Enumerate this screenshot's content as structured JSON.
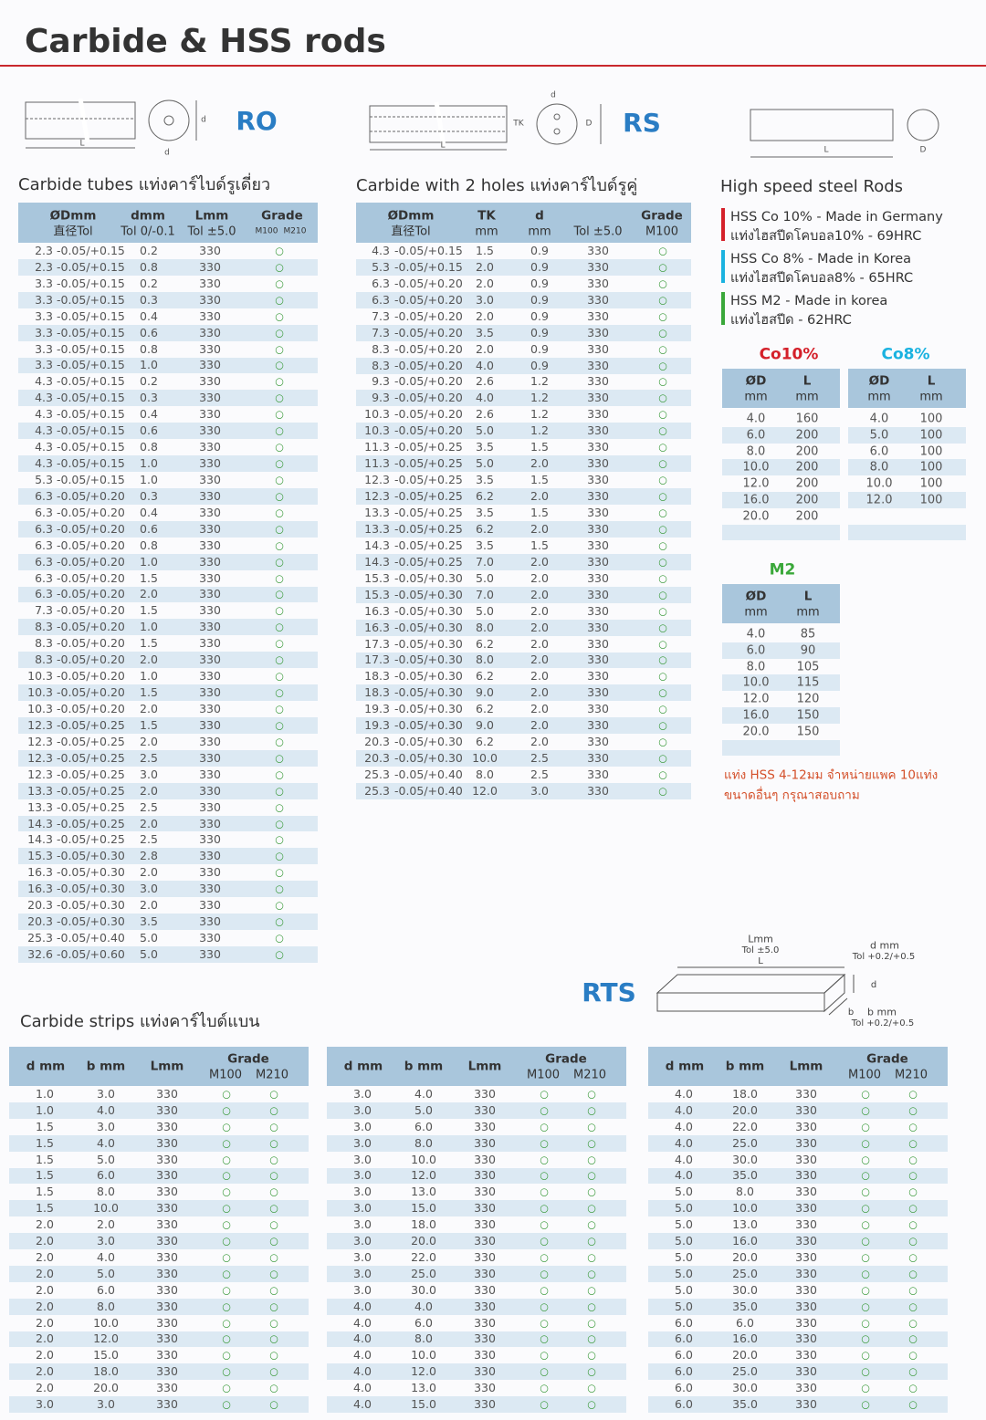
{
  "header": {
    "title": "Carbide & HSS rods"
  },
  "tubes": {
    "code": "RO",
    "title": "Carbide tubes แท่งคาร์ไบด์รูเดี่ยว",
    "diagram": [
      "L",
      "d",
      "d"
    ],
    "headers": [
      [
        "ØDmm",
        "直径Tol"
      ],
      [
        "dmm",
        "Tol 0/-0.1"
      ],
      [
        "Lmm",
        "Tol ±5.0"
      ],
      [
        "Grade",
        "M100",
        "M210"
      ]
    ],
    "rows": [
      [
        "2.3",
        "-0.05/+0.15",
        "0.2",
        "330",
        "○"
      ],
      [
        "2.3",
        "-0.05/+0.15",
        "0.8",
        "330",
        "○"
      ],
      [
        "3.3",
        "-0.05/+0.15",
        "0.2",
        "330",
        "○"
      ],
      [
        "3.3",
        "-0.05/+0.15",
        "0.3",
        "330",
        "○"
      ],
      [
        "3.3",
        "-0.05/+0.15",
        "0.4",
        "330",
        "○"
      ],
      [
        "3.3",
        "-0.05/+0.15",
        "0.6",
        "330",
        "○"
      ],
      [
        "3.3",
        "-0.05/+0.15",
        "0.8",
        "330",
        "○"
      ],
      [
        "3.3",
        "-0.05/+0.15",
        "1.0",
        "330",
        "○"
      ],
      [
        "4.3",
        "-0.05/+0.15",
        "0.2",
        "330",
        "○"
      ],
      [
        "4.3",
        "-0.05/+0.15",
        "0.3",
        "330",
        "○"
      ],
      [
        "4.3",
        "-0.05/+0.15",
        "0.4",
        "330",
        "○"
      ],
      [
        "4.3",
        "-0.05/+0.15",
        "0.6",
        "330",
        "○"
      ],
      [
        "4.3",
        "-0.05/+0.15",
        "0.8",
        "330",
        "○"
      ],
      [
        "4.3",
        "-0.05/+0.15",
        "1.0",
        "330",
        "○"
      ],
      [
        "5.3",
        "-0.05/+0.15",
        "1.0",
        "330",
        "○"
      ],
      [
        "6.3",
        "-0.05/+0.20",
        "0.3",
        "330",
        "○"
      ],
      [
        "6.3",
        "-0.05/+0.20",
        "0.4",
        "330",
        "○"
      ],
      [
        "6.3",
        "-0.05/+0.20",
        "0.6",
        "330",
        "○"
      ],
      [
        "6.3",
        "-0.05/+0.20",
        "0.8",
        "330",
        "○"
      ],
      [
        "6.3",
        "-0.05/+0.20",
        "1.0",
        "330",
        "○"
      ],
      [
        "6.3",
        "-0.05/+0.20",
        "1.5",
        "330",
        "○"
      ],
      [
        "6.3",
        "-0.05/+0.20",
        "2.0",
        "330",
        "○"
      ],
      [
        "7.3",
        "-0.05/+0.20",
        "1.5",
        "330",
        "○"
      ],
      [
        "8.3",
        "-0.05/+0.20",
        "1.0",
        "330",
        "○"
      ],
      [
        "8.3",
        "-0.05/+0.20",
        "1.5",
        "330",
        "○"
      ],
      [
        "8.3",
        "-0.05/+0.20",
        "2.0",
        "330",
        "○"
      ],
      [
        "10.3",
        "-0.05/+0.20",
        "1.0",
        "330",
        "○"
      ],
      [
        "10.3",
        "-0.05/+0.20",
        "1.5",
        "330",
        "○"
      ],
      [
        "10.3",
        "-0.05/+0.20",
        "2.0",
        "330",
        "○"
      ],
      [
        "12.3",
        "-0.05/+0.25",
        "1.5",
        "330",
        "○"
      ],
      [
        "12.3",
        "-0.05/+0.25",
        "2.0",
        "330",
        "○"
      ],
      [
        "12.3",
        "-0.05/+0.25",
        "2.5",
        "330",
        "○"
      ],
      [
        "12.3",
        "-0.05/+0.25",
        "3.0",
        "330",
        "○"
      ],
      [
        "13.3",
        "-0.05/+0.25",
        "2.0",
        "330",
        "○"
      ],
      [
        "13.3",
        "-0.05/+0.25",
        "2.5",
        "330",
        "○"
      ],
      [
        "14.3",
        "-0.05/+0.25",
        "2.0",
        "330",
        "○"
      ],
      [
        "14.3",
        "-0.05/+0.25",
        "2.5",
        "330",
        "○"
      ],
      [
        "15.3",
        "-0.05/+0.30",
        "2.8",
        "330",
        "○"
      ],
      [
        "16.3",
        "-0.05/+0.30",
        "2.0",
        "330",
        "○"
      ],
      [
        "16.3",
        "-0.05/+0.30",
        "3.0",
        "330",
        "○"
      ],
      [
        "20.3",
        "-0.05/+0.30",
        "2.0",
        "330",
        "○"
      ],
      [
        "20.3",
        "-0.05/+0.30",
        "3.5",
        "330",
        "○"
      ],
      [
        "25.3",
        "-0.05/+0.40",
        "5.0",
        "330",
        "○"
      ],
      [
        "32.6",
        "-0.05/+0.60",
        "5.0",
        "330",
        "○"
      ]
    ]
  },
  "holes": {
    "code": "RS",
    "title": "Carbide with 2 holes แท่งคาร์ไบด์รูคู่",
    "diagram": [
      "L",
      "TK",
      "D",
      "d"
    ],
    "headers": [
      [
        "ØDmm",
        "直径Tol"
      ],
      [
        "TK",
        "mm"
      ],
      [
        "d",
        "mm"
      ],
      [
        "",
        "Tol ±5.0"
      ],
      [
        "Grade",
        "M100"
      ]
    ],
    "rows": [
      [
        "4.3",
        "-0.05/+0.15",
        "1.5",
        "0.9",
        "330",
        "○"
      ],
      [
        "5.3",
        "-0.05/+0.15",
        "2.0",
        "0.9",
        "330",
        "○"
      ],
      [
        "6.3",
        "-0.05/+0.20",
        "2.0",
        "0.9",
        "330",
        "○"
      ],
      [
        "6.3",
        "-0.05/+0.20",
        "3.0",
        "0.9",
        "330",
        "○"
      ],
      [
        "7.3",
        "-0.05/+0.20",
        "2.0",
        "0.9",
        "330",
        "○"
      ],
      [
        "7.3",
        "-0.05/+0.20",
        "3.5",
        "0.9",
        "330",
        "○"
      ],
      [
        "8.3",
        "-0.05/+0.20",
        "2.0",
        "0.9",
        "330",
        "○"
      ],
      [
        "8.3",
        "-0.05/+0.20",
        "4.0",
        "0.9",
        "330",
        "○"
      ],
      [
        "9.3",
        "-0.05/+0.20",
        "2.6",
        "1.2",
        "330",
        "○"
      ],
      [
        "9.3",
        "-0.05/+0.20",
        "4.0",
        "1.2",
        "330",
        "○"
      ],
      [
        "10.3",
        "-0.05/+0.20",
        "2.6",
        "1.2",
        "330",
        "○"
      ],
      [
        "10.3",
        "-0.05/+0.20",
        "5.0",
        "1.2",
        "330",
        "○"
      ],
      [
        "11.3",
        "-0.05/+0.25",
        "3.5",
        "1.5",
        "330",
        "○"
      ],
      [
        "11.3",
        "-0.05/+0.25",
        "5.0",
        "2.0",
        "330",
        "○"
      ],
      [
        "12.3",
        "-0.05/+0.25",
        "3.5",
        "1.5",
        "330",
        "○"
      ],
      [
        "12.3",
        "-0.05/+0.25",
        "6.2",
        "2.0",
        "330",
        "○"
      ],
      [
        "13.3",
        "-0.05/+0.25",
        "3.5",
        "1.5",
        "330",
        "○"
      ],
      [
        "13.3",
        "-0.05/+0.25",
        "6.2",
        "2.0",
        "330",
        "○"
      ],
      [
        "14.3",
        "-0.05/+0.25",
        "3.5",
        "1.5",
        "330",
        "○"
      ],
      [
        "14.3",
        "-0.05/+0.25",
        "7.0",
        "2.0",
        "330",
        "○"
      ],
      [
        "15.3",
        "-0.05/+0.30",
        "5.0",
        "2.0",
        "330",
        "○"
      ],
      [
        "15.3",
        "-0.05/+0.30",
        "7.0",
        "2.0",
        "330",
        "○"
      ],
      [
        "16.3",
        "-0.05/+0.30",
        "5.0",
        "2.0",
        "330",
        "○"
      ],
      [
        "16.3",
        "-0.05/+0.30",
        "8.0",
        "2.0",
        "330",
        "○"
      ],
      [
        "17.3",
        "-0.05/+0.30",
        "6.2",
        "2.0",
        "330",
        "○"
      ],
      [
        "17.3",
        "-0.05/+0.30",
        "8.0",
        "2.0",
        "330",
        "○"
      ],
      [
        "18.3",
        "-0.05/+0.30",
        "6.2",
        "2.0",
        "330",
        "○"
      ],
      [
        "18.3",
        "-0.05/+0.30",
        "9.0",
        "2.0",
        "330",
        "○"
      ],
      [
        "19.3",
        "-0.05/+0.30",
        "6.2",
        "2.0",
        "330",
        "○"
      ],
      [
        "19.3",
        "-0.05/+0.30",
        "9.0",
        "2.0",
        "330",
        "○"
      ],
      [
        "20.3",
        "-0.05/+0.30",
        "6.2",
        "2.0",
        "330",
        "○"
      ],
      [
        "20.3",
        "-0.05/+0.30",
        "10.0",
        "2.5",
        "330",
        "○"
      ],
      [
        "25.3",
        "-0.05/+0.40",
        "8.0",
        "2.5",
        "330",
        "○"
      ],
      [
        "25.3",
        "-0.05/+0.40",
        "12.0",
        "3.0",
        "330",
        "○"
      ]
    ]
  },
  "hss": {
    "title": "High speed steel Rods",
    "diagram": [
      "L",
      "D"
    ],
    "legend": [
      {
        "name": "HSS Co 10% - Made in Germany",
        "sub": "แท่งไฮสปีดโคบอล10% - 69HRC",
        "color": "#d4202a"
      },
      {
        "name": "HSS Co 8% - Made in Korea",
        "sub": "แท่งไฮสปีดโคบอล8% - 65HRC",
        "color": "#1ab2e0"
      },
      {
        "name": "HSS M2 - Made in korea",
        "sub": "แท่งไฮสปีด - 62HRC",
        "color": "#3aa83a"
      }
    ],
    "tables": [
      {
        "label": "Co10%",
        "color": "#d4202a",
        "headers": [
          [
            "ØD",
            "mm"
          ],
          [
            "L",
            "mm"
          ]
        ],
        "rows": [
          [
            "4.0",
            "160"
          ],
          [
            "6.0",
            "200"
          ],
          [
            "8.0",
            "200"
          ],
          [
            "10.0",
            "200"
          ],
          [
            "12.0",
            "200"
          ],
          [
            "16.0",
            "200"
          ],
          [
            "20.0",
            "200"
          ]
        ]
      },
      {
        "label": "Co8%",
        "color": "#1ab2e0",
        "headers": [
          [
            "ØD",
            "mm"
          ],
          [
            "L",
            "mm"
          ]
        ],
        "rows": [
          [
            "4.0",
            "100"
          ],
          [
            "5.0",
            "100"
          ],
          [
            "6.0",
            "100"
          ],
          [
            "8.0",
            "100"
          ],
          [
            "10.0",
            "100"
          ],
          [
            "12.0",
            "100"
          ]
        ]
      },
      {
        "label": "M2",
        "color": "#3aa83a",
        "headers": [
          [
            "ØD",
            "mm"
          ],
          [
            "L",
            "mm"
          ]
        ],
        "rows": [
          [
            "4.0",
            "85"
          ],
          [
            "6.0",
            "90"
          ],
          [
            "8.0",
            "105"
          ],
          [
            "10.0",
            "115"
          ],
          [
            "12.0",
            "120"
          ],
          [
            "16.0",
            "150"
          ],
          [
            "20.0",
            "150"
          ]
        ]
      }
    ],
    "note": [
      "แท่ง HSS 4-12มม จำหน่ายแพค 10แท่ง",
      "ขนาดอื่นๆ กรุณาสอบถาม"
    ]
  },
  "strips": {
    "code": "RTS",
    "title": "Carbide strips แท่งคาร์ไบด์แบน",
    "diagram": [
      "Lmm",
      "Tol ±5.0",
      "L",
      "d mm",
      "Tol +0.2/+0.5",
      "d",
      "b",
      "b mm",
      "Tol +0.2/+0.5"
    ],
    "tables": [
      {
        "headers": [
          [
            "d mm"
          ],
          [
            "b mm"
          ],
          [
            "Lmm"
          ],
          [
            "Grade",
            "M100",
            "M210"
          ]
        ],
        "rows": [
          [
            "1.0",
            "3.0",
            "330",
            "○",
            "○"
          ],
          [
            "1.0",
            "4.0",
            "330",
            "○",
            "○"
          ],
          [
            "1.5",
            "3.0",
            "330",
            "○",
            "○"
          ],
          [
            "1.5",
            "4.0",
            "330",
            "○",
            "○"
          ],
          [
            "1.5",
            "5.0",
            "330",
            "○",
            "○"
          ],
          [
            "1.5",
            "6.0",
            "330",
            "○",
            "○"
          ],
          [
            "1.5",
            "8.0",
            "330",
            "○",
            "○"
          ],
          [
            "1.5",
            "10.0",
            "330",
            "○",
            "○"
          ],
          [
            "2.0",
            "2.0",
            "330",
            "○",
            "○"
          ],
          [
            "2.0",
            "3.0",
            "330",
            "○",
            "○"
          ],
          [
            "2.0",
            "4.0",
            "330",
            "○",
            "○"
          ],
          [
            "2.0",
            "5.0",
            "330",
            "○",
            "○"
          ],
          [
            "2.0",
            "6.0",
            "330",
            "○",
            "○"
          ],
          [
            "2.0",
            "8.0",
            "330",
            "○",
            "○"
          ],
          [
            "2.0",
            "10.0",
            "330",
            "○",
            "○"
          ],
          [
            "2.0",
            "12.0",
            "330",
            "○",
            "○"
          ],
          [
            "2.0",
            "15.0",
            "330",
            "○",
            "○"
          ],
          [
            "2.0",
            "18.0",
            "330",
            "○",
            "○"
          ],
          [
            "2.0",
            "20.0",
            "330",
            "○",
            "○"
          ],
          [
            "3.0",
            "3.0",
            "330",
            "○",
            "○"
          ]
        ]
      },
      {
        "headers": [
          [
            "d mm"
          ],
          [
            "b mm"
          ],
          [
            "Lmm"
          ],
          [
            "Grade",
            "M100",
            "M210"
          ]
        ],
        "rows": [
          [
            "3.0",
            "4.0",
            "330",
            "○",
            "○"
          ],
          [
            "3.0",
            "5.0",
            "330",
            "○",
            "○"
          ],
          [
            "3.0",
            "6.0",
            "330",
            "○",
            "○"
          ],
          [
            "3.0",
            "8.0",
            "330",
            "○",
            "○"
          ],
          [
            "3.0",
            "10.0",
            "330",
            "○",
            "○"
          ],
          [
            "3.0",
            "12.0",
            "330",
            "○",
            "○"
          ],
          [
            "3.0",
            "13.0",
            "330",
            "○",
            "○"
          ],
          [
            "3.0",
            "15.0",
            "330",
            "○",
            "○"
          ],
          [
            "3.0",
            "18.0",
            "330",
            "○",
            "○"
          ],
          [
            "3.0",
            "20.0",
            "330",
            "○",
            "○"
          ],
          [
            "3.0",
            "22.0",
            "330",
            "○",
            "○"
          ],
          [
            "3.0",
            "25.0",
            "330",
            "○",
            "○"
          ],
          [
            "3.0",
            "30.0",
            "330",
            "○",
            "○"
          ],
          [
            "4.0",
            "4.0",
            "330",
            "○",
            "○"
          ],
          [
            "4.0",
            "6.0",
            "330",
            "○",
            "○"
          ],
          [
            "4.0",
            "8.0",
            "330",
            "○",
            "○"
          ],
          [
            "4.0",
            "10.0",
            "330",
            "○",
            "○"
          ],
          [
            "4.0",
            "12.0",
            "330",
            "○",
            "○"
          ],
          [
            "4.0",
            "13.0",
            "330",
            "○",
            "○"
          ],
          [
            "4.0",
            "15.0",
            "330",
            "○",
            "○"
          ]
        ]
      },
      {
        "headers": [
          [
            "d mm"
          ],
          [
            "b mm"
          ],
          [
            "Lmm"
          ],
          [
            "Grade",
            "M100",
            "M210"
          ]
        ],
        "rows": [
          [
            "4.0",
            "18.0",
            "330",
            "○",
            "○"
          ],
          [
            "4.0",
            "20.0",
            "330",
            "○",
            "○"
          ],
          [
            "4.0",
            "22.0",
            "330",
            "○",
            "○"
          ],
          [
            "4.0",
            "25.0",
            "330",
            "○",
            "○"
          ],
          [
            "4.0",
            "30.0",
            "330",
            "○",
            "○"
          ],
          [
            "4.0",
            "35.0",
            "330",
            "○",
            "○"
          ],
          [
            "5.0",
            "8.0",
            "330",
            "○",
            "○"
          ],
          [
            "5.0",
            "10.0",
            "330",
            "○",
            "○"
          ],
          [
            "5.0",
            "13.0",
            "330",
            "○",
            "○"
          ],
          [
            "5.0",
            "16.0",
            "330",
            "○",
            "○"
          ],
          [
            "5.0",
            "20.0",
            "330",
            "○",
            "○"
          ],
          [
            "5.0",
            "25.0",
            "330",
            "○",
            "○"
          ],
          [
            "5.0",
            "30.0",
            "330",
            "○",
            "○"
          ],
          [
            "5.0",
            "35.0",
            "330",
            "○",
            "○"
          ],
          [
            "6.0",
            "6.0",
            "330",
            "○",
            "○"
          ],
          [
            "6.0",
            "16.0",
            "330",
            "○",
            "○"
          ],
          [
            "6.0",
            "20.0",
            "330",
            "○",
            "○"
          ],
          [
            "6.0",
            "25.0",
            "330",
            "○",
            "○"
          ],
          [
            "6.0",
            "30.0",
            "330",
            "○",
            "○"
          ],
          [
            "6.0",
            "35.0",
            "330",
            "○",
            "○"
          ]
        ]
      }
    ]
  }
}
